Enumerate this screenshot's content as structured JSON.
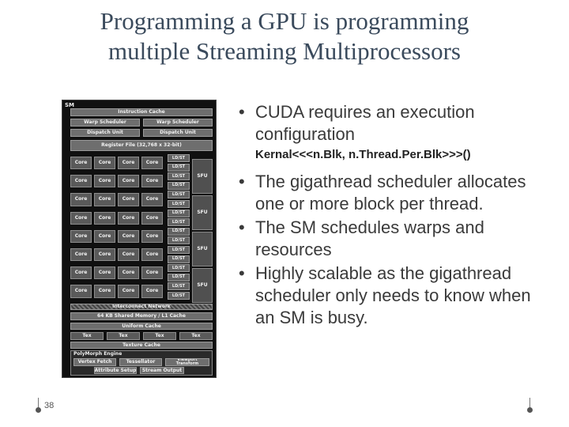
{
  "title": {
    "line1": "Programming a GPU is programming",
    "line2": "multiple Streaming Multiprocessors"
  },
  "diagram": {
    "sm_label": "SM",
    "instruction_cache": "Instruction Cache",
    "warp_scheduler": "Warp Scheduler",
    "dispatch_unit": "Dispatch Unit",
    "register_file": "Register File (32,768 x 32-bit)",
    "core": "Core",
    "ldst": "LD/ST",
    "sfu": "SFU",
    "interconnect": "Interconnect Network",
    "shared_memory": "64 KB Shared Memory / L1 Cache",
    "uniform_cache": "Uniform Cache",
    "tex": "Tex",
    "texture_cache": "Texture Cache",
    "polymorph_engine": "PolyMorph Engine",
    "vertex_fetch": "Vertex Fetch",
    "tessellator": "Tessellator",
    "viewport_transform": "Viewport Transform",
    "attribute_setup": "Attribute Setup",
    "stream_output": "Stream Output"
  },
  "bullets": [
    {
      "text": "CUDA requires an execution configuration"
    },
    {
      "text": "The gigathread scheduler allocates one or more block per thread."
    },
    {
      "text": "The SM schedules warps and resources"
    },
    {
      "text": "Highly scalable as the gigathread scheduler only needs to know when an SM is busy."
    }
  ],
  "code_line": "Kernal<<<n.Blk, n.Thread.Per.Blk>>>()",
  "bullet_symbol": "•",
  "slide_number": "38"
}
